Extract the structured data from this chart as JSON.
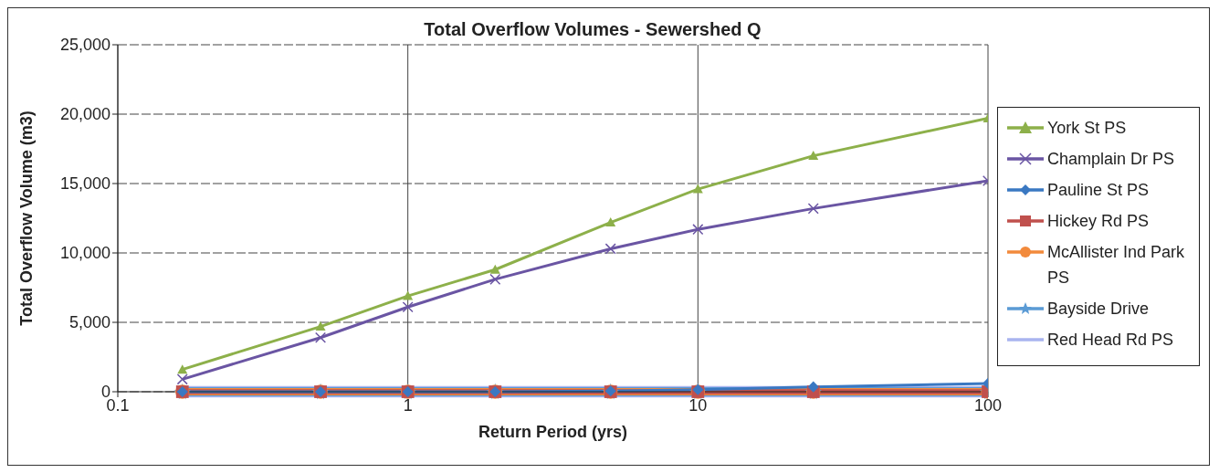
{
  "chart_data": {
    "type": "line",
    "title": "Total Overflow Volumes - Sewershed Q",
    "xlabel": "Return Period (yrs)",
    "ylabel": "Total Overflow Volume (m3)",
    "x": [
      0.167,
      0.5,
      1,
      2,
      5,
      10,
      25,
      100
    ],
    "log": "x",
    "xlim": [
      0.1,
      100
    ],
    "xticks": [
      0.1,
      1,
      10,
      100
    ],
    "ylim": [
      0,
      25000
    ],
    "yticks": [
      {
        "value": 0,
        "label": "0"
      },
      {
        "value": 5000,
        "label": "5,000"
      },
      {
        "value": 10000,
        "label": "10,000"
      },
      {
        "value": 15000,
        "label": "15,000"
      },
      {
        "value": 20000,
        "label": "20,000"
      },
      {
        "value": 25000,
        "label": "25,000"
      }
    ],
    "grid": true,
    "legend": "right",
    "series": [
      {
        "name": "York St PS",
        "color": "#8db04a",
        "marker": "triangle",
        "values": [
          1600,
          4700,
          6900,
          8800,
          12200,
          14600,
          17000,
          19700
        ]
      },
      {
        "name": "Champlain Dr PS",
        "color": "#6a55a3",
        "marker": "cross",
        "values": [
          900,
          3900,
          6100,
          8100,
          10300,
          11700,
          13200,
          15200
        ]
      },
      {
        "name": "Pauline St PS",
        "color": "#3a78c2",
        "marker": "diamond",
        "values": [
          0,
          0,
          0,
          0,
          50,
          150,
          350,
          600
        ]
      },
      {
        "name": "Hickey Rd PS",
        "color": "#c0504d",
        "marker": "square",
        "values": [
          0,
          0,
          0,
          0,
          0,
          0,
          0,
          0
        ]
      },
      {
        "name": "McAllister Ind Park PS",
        "color": "#f28a3c",
        "marker": "circle",
        "values": [
          0,
          0,
          0,
          0,
          0,
          0,
          0,
          0
        ]
      },
      {
        "name": "Bayside Drive",
        "color": "#5b9bd5",
        "marker": "star",
        "values": [
          0,
          0,
          0,
          0,
          0,
          0,
          0,
          0
        ]
      },
      {
        "name": "Red Head Rd PS",
        "color": "#a9b4ef",
        "marker": "none",
        "values": [
          0,
          0,
          0,
          0,
          0,
          0,
          0,
          0
        ]
      }
    ]
  }
}
